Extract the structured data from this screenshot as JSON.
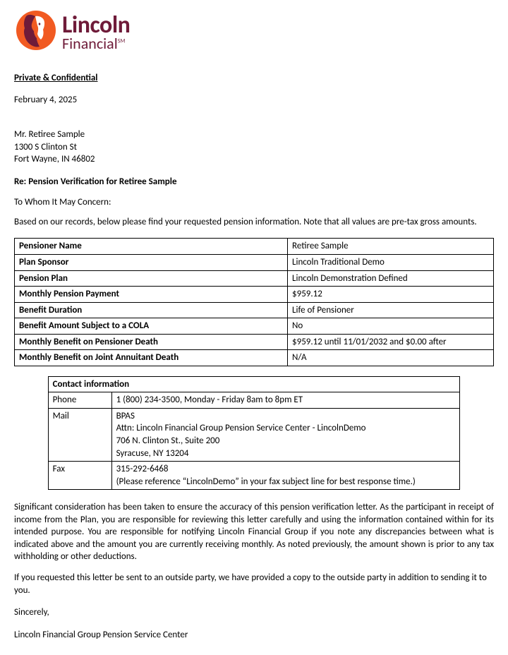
{
  "logo": {
    "line1": "Lincoln",
    "line2": "Financial",
    "sm": "SM",
    "brand_color": "#6f1b39",
    "accent_color": "#f15a22"
  },
  "header": {
    "confidential": "Private & Confidential",
    "date": "February 4, 2025"
  },
  "recipient": {
    "name": "Mr. Retiree Sample",
    "street": "1300 S Clinton St",
    "city_state_zip": "Fort Wayne, IN 46802"
  },
  "subject": "Re:  Pension Verification for Retiree Sample",
  "salutation": "To Whom It May Concern:",
  "intro": "Based on our records, below please find your requested pension information. Note that all values are pre-tax gross amounts.",
  "pension_table": {
    "rows": [
      {
        "label": "Pensioner Name",
        "value": "Retiree Sample"
      },
      {
        "label": "Plan Sponsor",
        "value": "Lincoln Traditional Demo"
      },
      {
        "label": "Pension Plan",
        "value": "Lincoln Demonstration Defined"
      },
      {
        "label": "Monthly Pension Payment",
        "value": "$959.12"
      },
      {
        "label": "Benefit Duration",
        "value": "Life of Pensioner"
      },
      {
        "label": "Benefit Amount Subject to a COLA",
        "value": "No"
      },
      {
        "label": "Monthly Benefit on Pensioner Death",
        "value": "$959.12 until 11/01/2032 and $0.00 after"
      },
      {
        "label": "Monthly Benefit on Joint Annuitant Death",
        "value": "N/A"
      }
    ]
  },
  "contact_table": {
    "header": "Contact information",
    "rows": [
      {
        "label": "Phone",
        "value": "1 (800) 234-3500, Monday - Friday 8am to 8pm ET"
      },
      {
        "label": "Mail",
        "value": "BPAS\nAttn: Lincoln Financial Group Pension Service Center - LincolnDemo\n706 N. Clinton St., Suite 200\nSyracuse, NY 13204"
      },
      {
        "label": "Fax",
        "value": "315-292-6468\n(Please reference “LincolnDemo” in your fax subject line for best response time.)"
      }
    ]
  },
  "body_paras": [
    "Significant consideration has been taken to ensure the accuracy of this pension verification letter. As the participant in receipt of income from the Plan, you are responsible for reviewing this letter carefully and using the information contained within for its intended purpose. You are responsible for notifying Lincoln Financial Group if you note any discrepancies between what is indicated above and the amount you are currently receiving monthly. As noted previously, the amount shown is prior to any tax withholding or other deductions.",
    "If you requested this letter be sent to an outside party, we have provided a copy to the outside party in addition to sending it to you."
  ],
  "closing": "Sincerely,",
  "signature": "Lincoln Financial Group Pension Service Center"
}
